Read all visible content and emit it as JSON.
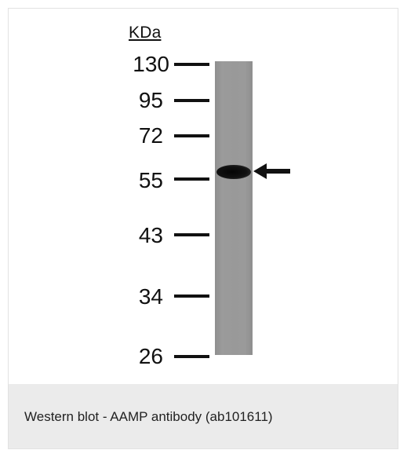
{
  "blot": {
    "unit_label": "KDa",
    "markers": [
      "130",
      "95",
      "72",
      "55",
      "43",
      "34",
      "26"
    ]
  },
  "caption": "Western blot - AAMP antibody (ab101611)"
}
